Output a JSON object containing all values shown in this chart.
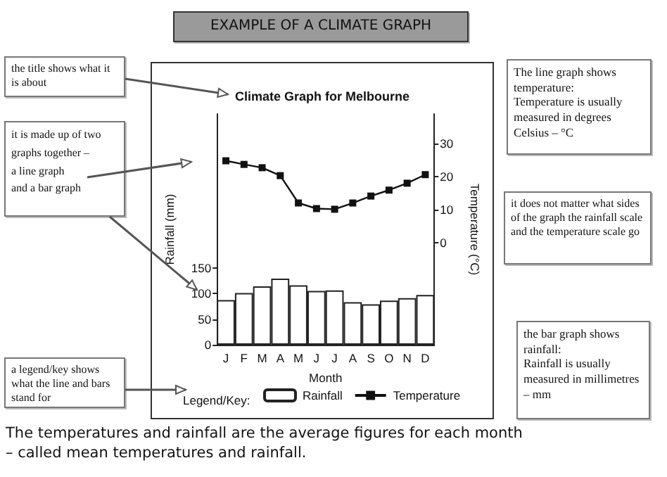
{
  "chart_data": {
    "type": "bar",
    "title": "Climate Graph for Melbourne",
    "xlabel": "Month",
    "ylabel": "Rainfall (mm)",
    "y2label": "Temperature (°C)",
    "legend_title": "Legend/Key:",
    "categories": [
      "J",
      "F",
      "M",
      "A",
      "M",
      "J",
      "J",
      "A",
      "S",
      "O",
      "N",
      "D"
    ],
    "series": [
      {
        "name": "Rainfall",
        "color": "#ffffff",
        "values": [
          87,
          101,
          114,
          129,
          116,
          105,
          106,
          83,
          79,
          86,
          91,
          97
        ]
      },
      {
        "name": "Temperature",
        "type": "line",
        "axis": "y2",
        "color": "#111111",
        "values": [
          24.8,
          23.7,
          22.7,
          20.3,
          12.0,
          10.3,
          10.1,
          12.0,
          14.1,
          15.9,
          18.0,
          20.6
        ]
      }
    ],
    "ylim": [
      0,
      450
    ],
    "yticks": [
      0,
      50,
      100,
      150
    ],
    "y2lim": [
      -31,
      39
    ],
    "y2ticks": [
      0,
      10,
      20,
      30
    ],
    "marker": "square",
    "line_style": "solid",
    "grid": false,
    "legend": "bottom",
    "annotations": [
      "EXAMPLE OF A CLIMATE GRAPH",
      "the title shows what it is about",
      "it is made up of two graphs together –\na line graph\nand a bar graph",
      "a legend/key shows what the line and bars stand for",
      "The line graph shows temperature:\nTemperature is usually measured in degrees Celsius – °C",
      "it does not matter what sides of the graph the rainfall scale and the temperature scale go",
      "the bar graph shows rainfall:\nRainfall is usually measured in millimetres – mm",
      "The temperatures and rainfall are the average figures for each month – called mean temperatures and rainfall."
    ]
  }
}
